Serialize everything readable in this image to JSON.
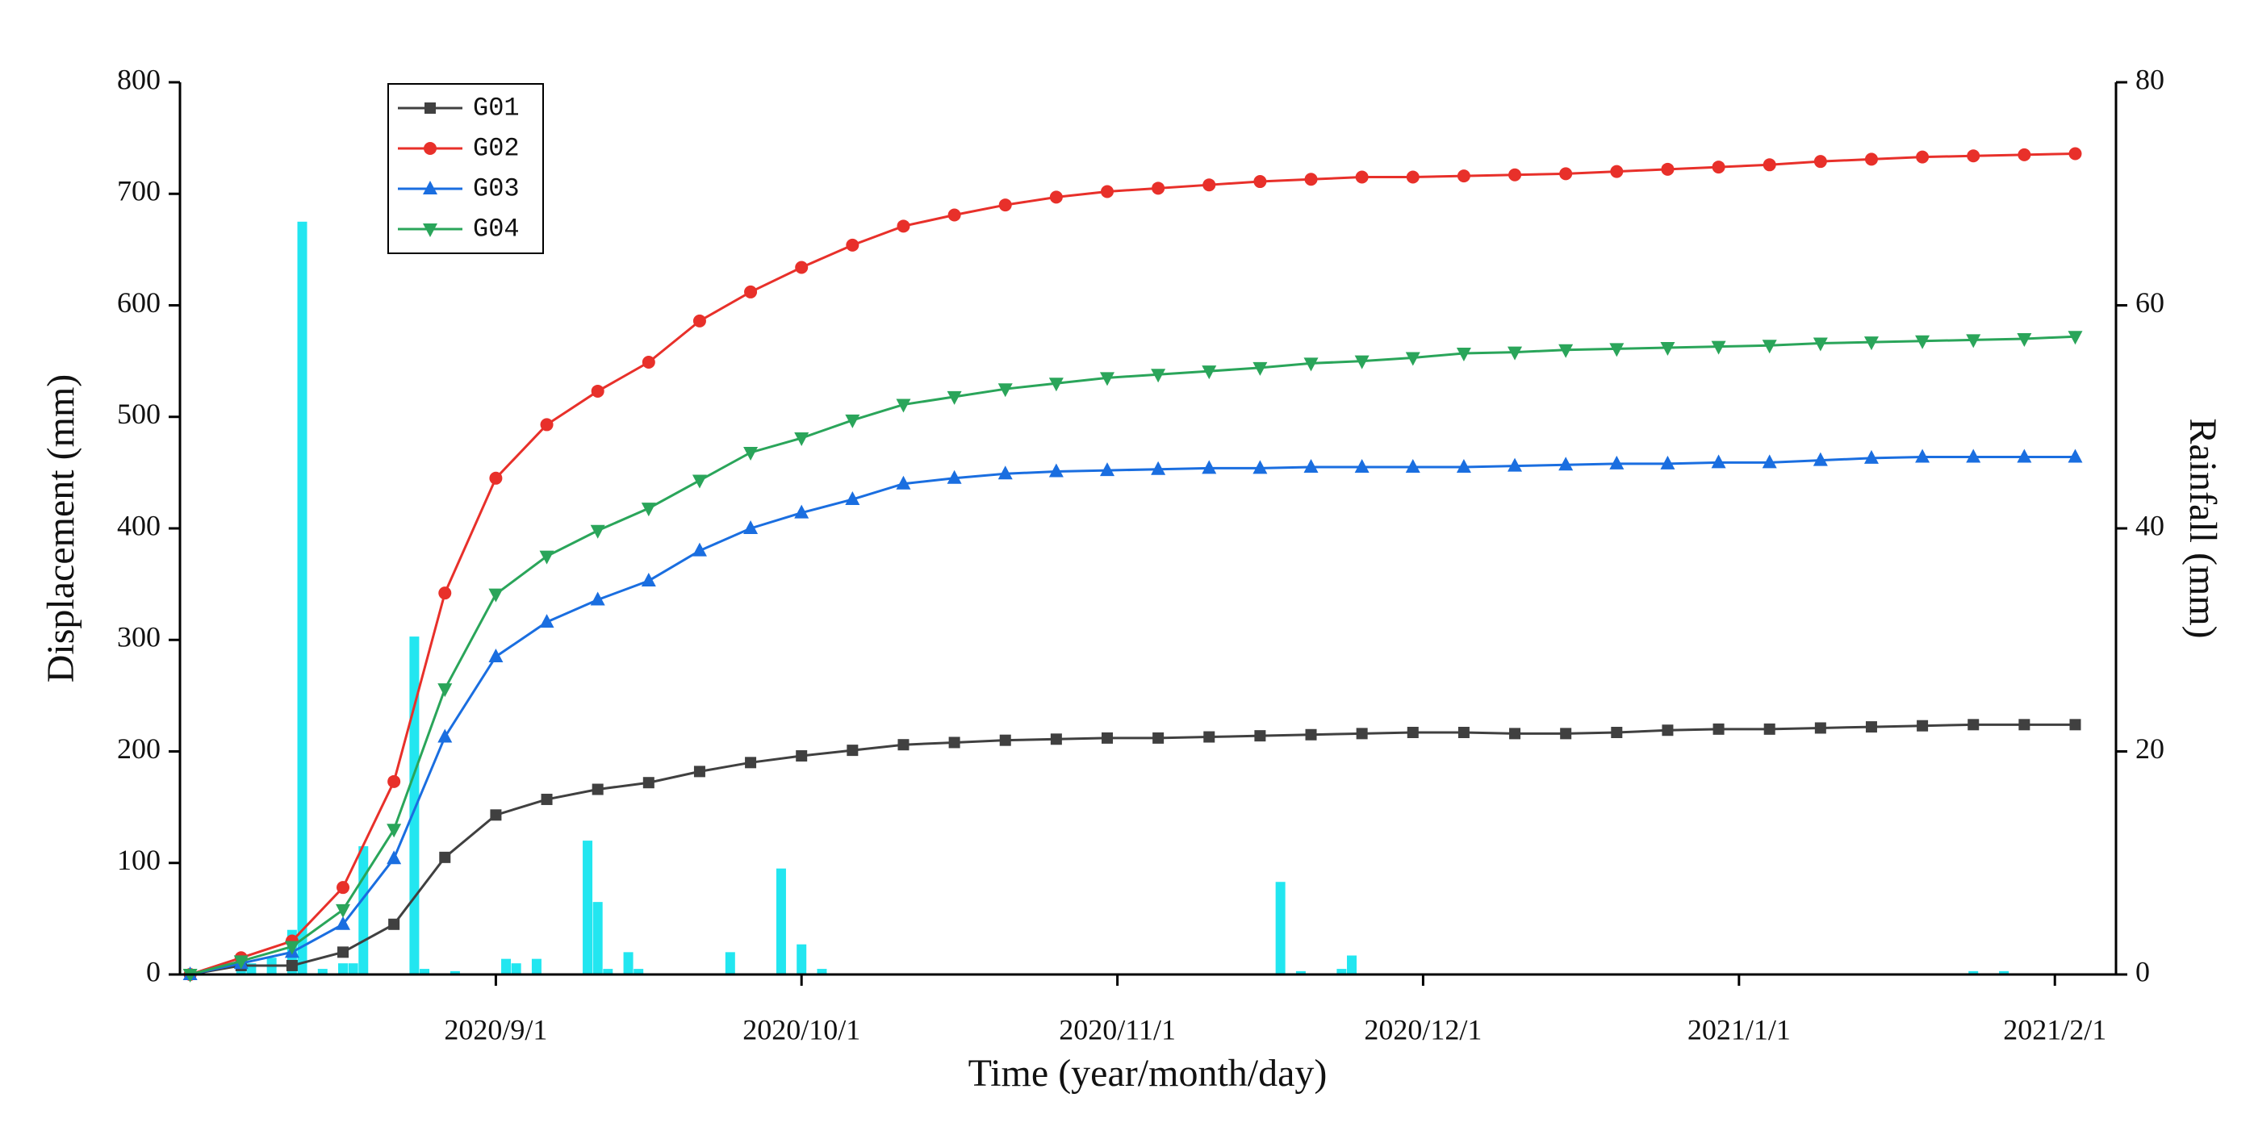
{
  "chart_data": {
    "type": "line",
    "xlabel": "Time (year/month/day)",
    "ylabel": "Displacement (mm)",
    "y2label": "Rainfall (mm)",
    "xlim": [
      "2020/8/1",
      "2021/2/7"
    ],
    "xticks": [
      "2020/9/1",
      "2020/10/1",
      "2020/11/1",
      "2020/12/1",
      "2021/1/1",
      "2021/2/1"
    ],
    "ylim": [
      0,
      800
    ],
    "yticks": [
      0,
      100,
      200,
      300,
      400,
      500,
      600,
      700,
      800
    ],
    "y2lim": [
      0,
      80
    ],
    "y2ticks": [
      0,
      20,
      40,
      60,
      80
    ],
    "legend": "upper left",
    "x": [
      "2020/8/2",
      "2020/8/7",
      "2020/8/12",
      "2020/8/17",
      "2020/8/22",
      "2020/8/27",
      "2020/9/1",
      "2020/9/6",
      "2020/9/11",
      "2020/9/16",
      "2020/9/21",
      "2020/9/26",
      "2020/10/1",
      "2020/10/6",
      "2020/10/11",
      "2020/10/16",
      "2020/10/21",
      "2020/10/26",
      "2020/10/31",
      "2020/11/5",
      "2020/11/10",
      "2020/11/15",
      "2020/11/20",
      "2020/11/25",
      "2020/11/30",
      "2020/12/5",
      "2020/12/10",
      "2020/12/15",
      "2020/12/20",
      "2020/12/25",
      "2020/12/30",
      "2021/1/4",
      "2021/1/9",
      "2021/1/14",
      "2021/1/19",
      "2021/1/24",
      "2021/1/29",
      "2021/2/3"
    ],
    "series": [
      {
        "name": "G01",
        "color": "#404040",
        "marker": "square",
        "values": [
          0,
          8,
          8,
          20,
          45,
          105,
          143,
          157,
          166,
          172,
          182,
          190,
          196,
          201,
          206,
          208,
          210,
          211,
          212,
          212,
          213,
          214,
          215,
          216,
          217,
          217,
          216,
          216,
          217,
          219,
          220,
          220,
          221,
          222,
          223,
          224,
          224,
          224
        ]
      },
      {
        "name": "G02",
        "color": "#e8302a",
        "marker": "circle",
        "values": [
          0,
          15,
          30,
          78,
          173,
          342,
          445,
          493,
          523,
          549,
          586,
          612,
          634,
          654,
          671,
          681,
          690,
          697,
          702,
          705,
          708,
          711,
          713,
          715,
          715,
          716,
          717,
          718,
          720,
          722,
          724,
          726,
          729,
          731,
          733,
          734,
          735,
          736
        ]
      },
      {
        "name": "G03",
        "color": "#1a6ee0",
        "marker": "triangle-up",
        "values": [
          0,
          10,
          20,
          45,
          104,
          213,
          285,
          316,
          336,
          353,
          380,
          400,
          414,
          426,
          440,
          445,
          449,
          451,
          452,
          453,
          454,
          454,
          455,
          455,
          455,
          455,
          456,
          457,
          458,
          458,
          459,
          459,
          461,
          463,
          464,
          464,
          464,
          464
        ]
      },
      {
        "name": "G04",
        "color": "#2aa55a",
        "marker": "triangle-down",
        "values": [
          0,
          12,
          25,
          58,
          130,
          256,
          341,
          375,
          398,
          418,
          443,
          468,
          481,
          497,
          511,
          518,
          525,
          530,
          535,
          538,
          541,
          544,
          548,
          550,
          553,
          557,
          558,
          560,
          561,
          562,
          563,
          564,
          566,
          567,
          568,
          569,
          570,
          572
        ]
      },
      {
        "type": "bar",
        "axis": "y2",
        "color": "#22e6f0",
        "x": [
          "2020/8/7",
          "2020/8/8",
          "2020/8/10",
          "2020/8/12",
          "2020/8/13",
          "2020/8/15",
          "2020/8/17",
          "2020/8/18",
          "2020/8/19",
          "2020/8/24",
          "2020/8/25",
          "2020/8/28",
          "2020/9/2",
          "2020/9/3",
          "2020/9/5",
          "2020/9/10",
          "2020/9/11",
          "2020/9/12",
          "2020/9/14",
          "2020/9/15",
          "2020/9/24",
          "2020/9/29",
          "2020/10/1",
          "2020/10/3",
          "2020/11/17",
          "2020/11/19",
          "2020/11/23",
          "2020/11/24",
          "2021/1/24",
          "2021/1/27"
        ],
        "values": [
          1.2,
          1,
          1.5,
          4,
          67.5,
          0.5,
          1,
          1,
          11.5,
          30.3,
          0.5,
          0.3,
          1.4,
          1,
          1.4,
          12,
          6.5,
          0.5,
          2,
          0.5,
          2,
          9.5,
          2.7,
          0.5,
          8.3,
          0.3,
          0.5,
          1.7,
          0.3,
          0.3
        ]
      }
    ]
  }
}
